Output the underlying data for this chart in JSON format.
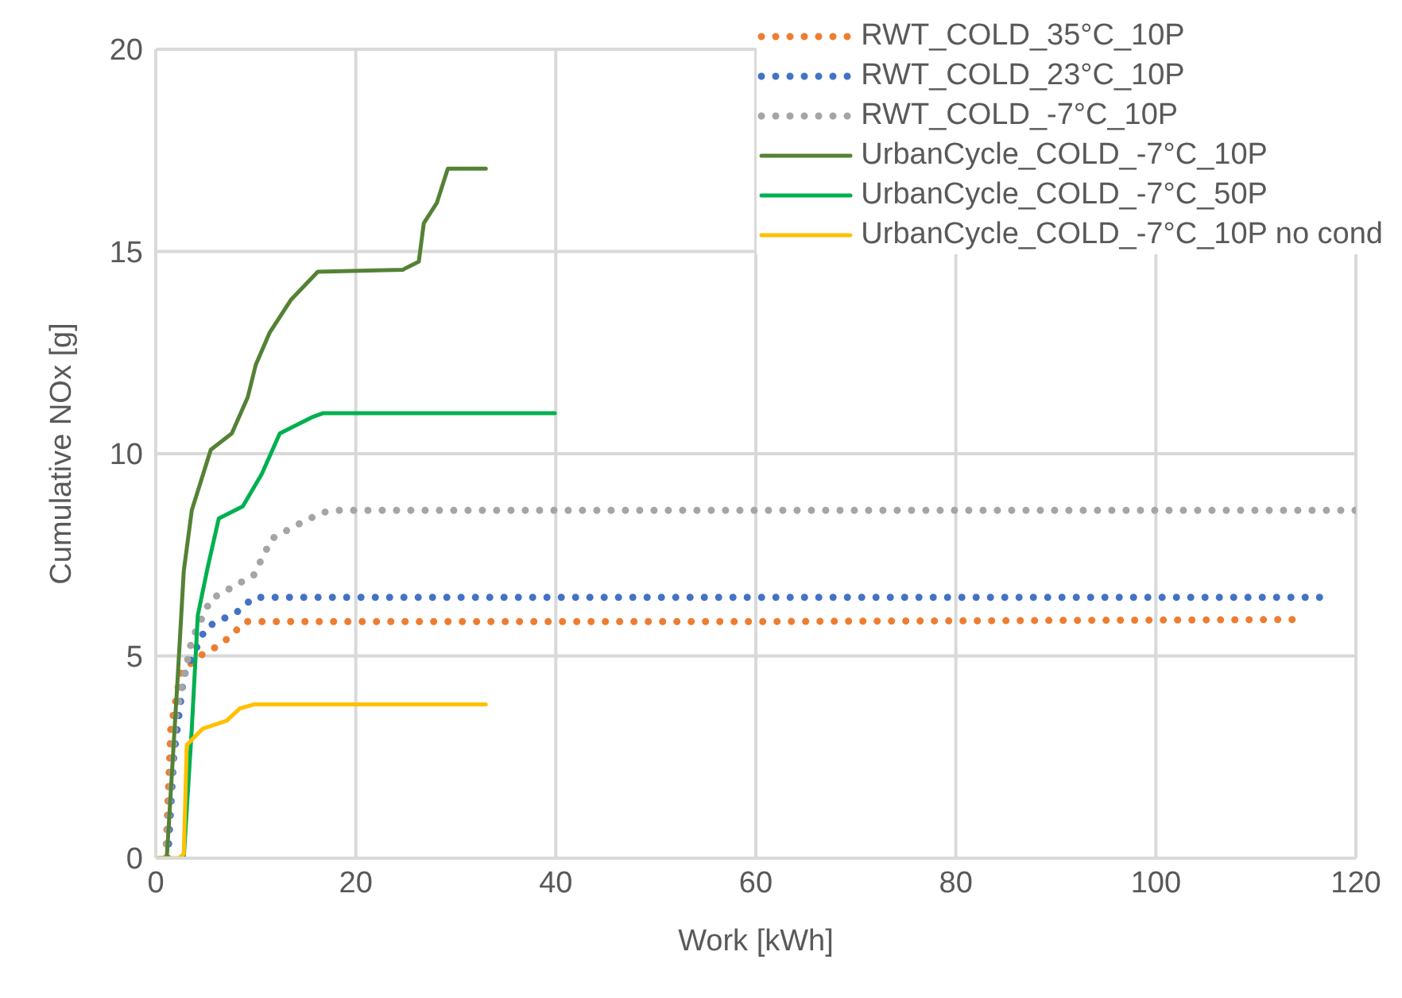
{
  "chart_data": {
    "type": "line",
    "xlabel": "Work [kWh]",
    "ylabel": "Cumulative NOx [g]",
    "xlim": [
      0,
      120
    ],
    "xticks": [
      0,
      20,
      40,
      60,
      80,
      100,
      120
    ],
    "ylim": [
      0,
      20
    ],
    "yticks": [
      0,
      5,
      10,
      15,
      20
    ],
    "grid": true,
    "legend": "top right",
    "marker": "none",
    "series": [
      {
        "name": "RWT_COLD_35°C_10P",
        "color": "#ed7d31",
        "line_style": "dotted",
        "x": [
          1,
          1.5,
          2.5,
          4.4,
          6.6,
          9,
          20,
          60,
          114.6
        ],
        "values": [
          0,
          3.2,
          4.6,
          5.0,
          5.3,
          5.85,
          5.85,
          5.85,
          5.9
        ]
      },
      {
        "name": "RWT_COLD_23°C_10P",
        "color": "#4472c4",
        "line_style": "dotted",
        "x": [
          1.2,
          1.8,
          2.8,
          5,
          8.2,
          9.8,
          30,
          117
        ],
        "values": [
          0,
          2.5,
          4.5,
          5.7,
          6.1,
          6.45,
          6.45,
          6.45
        ]
      },
      {
        "name": "RWT_COLD_-7°C_10P",
        "color": "#a5a5a5",
        "line_style": "dotted",
        "x": [
          1,
          2,
          3.6,
          5.5,
          9.8,
          11.6,
          14.6,
          16.7,
          18.3,
          60,
          120
        ],
        "values": [
          0,
          3.5,
          5.4,
          6.4,
          7.0,
          7.9,
          8.3,
          8.55,
          8.6,
          8.6,
          8.6
        ]
      },
      {
        "name": "UrbanCycle_COLD_-7°C_10P",
        "color": "#548235",
        "line_style": "solid",
        "x": [
          0,
          1.1,
          2.2,
          2.8,
          3.6,
          5.5,
          7.6,
          9.2,
          10,
          11.4,
          13.5,
          16.2,
          24.7,
          26.3,
          26.8,
          28.1,
          29.2,
          33
        ],
        "values": [
          0,
          0,
          4.5,
          7.1,
          8.6,
          10.1,
          10.5,
          11.4,
          12.2,
          13,
          13.8,
          14.5,
          14.55,
          14.75,
          15.7,
          16.2,
          17.05,
          17.05
        ]
      },
      {
        "name": "UrbanCycle_COLD_-7°C_50P",
        "color": "#00b050",
        "line_style": "solid",
        "x": [
          2.8,
          3.6,
          4.2,
          5.2,
          6.3,
          8.7,
          10.6,
          12.4,
          15.6,
          16.7,
          39.9
        ],
        "values": [
          0,
          3.2,
          6,
          7.2,
          8.4,
          8.7,
          9.5,
          10.5,
          10.9,
          11,
          11
        ]
      },
      {
        "name": "UrbanCycle_COLD_-7°C_10P no cond",
        "color": "#ffc000",
        "line_style": "solid",
        "x": [
          0,
          2.3,
          2.8,
          3.1,
          4.7,
          7.1,
          8.4,
          9.8,
          33
        ],
        "values": [
          0,
          0,
          0.1,
          2.8,
          3.2,
          3.4,
          3.7,
          3.8,
          3.8
        ]
      }
    ]
  }
}
